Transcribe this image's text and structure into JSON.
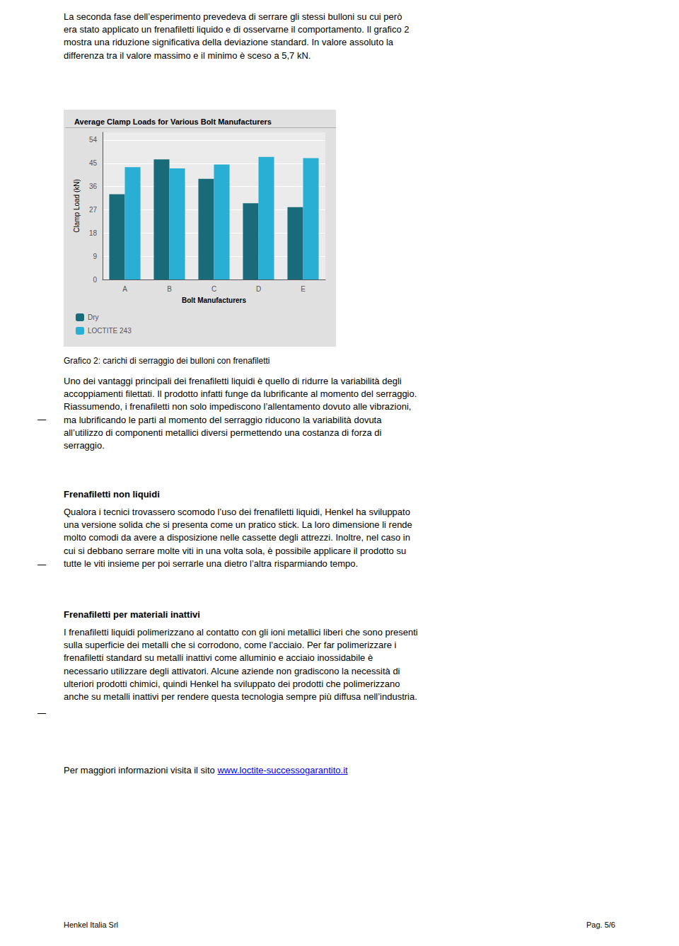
{
  "chart_data": {
    "type": "bar",
    "title": "Average Clamp Loads for Various Bolt Manufacturers",
    "xlabel": "Bolt Manufacturers",
    "ylabel": "Clamp Load (kN)",
    "categories": [
      "A",
      "B",
      "C",
      "D",
      "E"
    ],
    "series": [
      {
        "name": "Dry",
        "color": "#1a6b7a",
        "values": [
          33,
          46.5,
          39,
          29.5,
          28
        ]
      },
      {
        "name": "LOCTITE 243",
        "color": "#2aafd4",
        "values": [
          43.5,
          43,
          44.5,
          47.5,
          47
        ]
      }
    ],
    "ylim": [
      0,
      57
    ],
    "yticks": [
      0,
      9,
      18,
      27,
      36,
      45,
      54
    ],
    "grid": true,
    "legend": "lower left",
    "annotations": [
      "La seconda fase dell’esperimento prevedeva di serrare gli stessi bulloni su cui però\nera stato applicato un frenafiletti liquido e di osservarne il comportamento. Il grafico 2\nmostra una riduzione significativa della deviazione standard. In valore assoluto la\ndifferenza tra il valore massimo e il minimo è sceso a 5,7 kN.",
      "Grafico 2: carichi di serraggio dei bulloni con frenafiletti",
      "Uno dei vantaggi principali dei frenafiletti liquidi è quello di ridurre la variabilità degli\naccoppiamenti filettati. Il prodotto infatti funge da lubrificante al momento del serraggio.\nRiassumendo, i frenafiletti non solo impediscono l’allentamento dovuto alle vibrazioni,\nma lubrificando le parti al momento del serraggio riducono la variabilità dovuta\nall’utilizzo di componenti metallici diversi permettendo una costanza di forza di\nserraggio.",
      "Frenafiletti non liquidi",
      "Qualora i tecnici trovassero scomodo l’uso dei frenafiletti liquidi, Henkel ha sviluppato\nuna versione solida che si presenta come un pratico stick. La loro dimensione li rende\nmolto comodi da avere a disposizione nelle cassette degli attrezzi. Inoltre, nel caso in\ncui si debbano serrare molte viti in una volta sola, è possibile applicare il prodotto su\ntutte le viti insieme per poi serrarle una dietro l’altra risparmiando tempo.",
      "Frenafiletti per materiali inattivi",
      "I frenafiletti liquidi polimerizzano al contatto con gli ioni metallici liberi che sono presenti\nsulla superficie dei metalli che si corrodono, come l’acciaio. Per far polimerizzare i\nfrenafiletti standard su metalli inattivi come alluminio e acciaio inossidabile è\nnecessario utilizzare degli attivatori. Alcune aziende non gradiscono la necessità di\nulteriori prodotti chimici, quindi Henkel ha sviluppato dei prodotti che polimerizzano\nanche su metalli inattivi per rendere questa tecnologia sempre più diffusa nell’industria.",
      "Per maggiori informazioni visita il sito ",
      "www.loctite-successogarantito.it",
      "Henkel Italia Srl",
      "Pag. 5/6",
      "—",
      "—",
      "—"
    ]
  }
}
